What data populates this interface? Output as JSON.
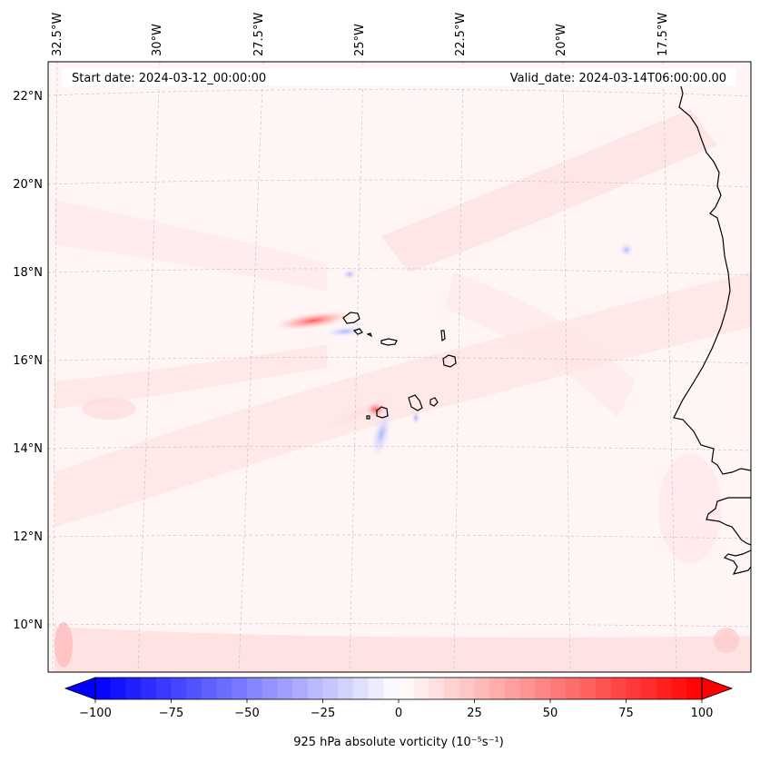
{
  "header": {
    "start_date": "Start date: 2024-03-12_00:00:00",
    "valid_date": "Valid_date: 2024-03-14T06:00:00.00"
  },
  "map": {
    "lon_labels": [
      "32.5°W",
      "30°W",
      "27.5°W",
      "25°W",
      "22.5°W",
      "20°W",
      "17.5°W"
    ],
    "lat_labels": [
      "22°N",
      "20°N",
      "18°N",
      "16°N",
      "14°N",
      "12°N",
      "10°N"
    ],
    "gridlines": "dashed",
    "coastlines": true
  },
  "colorbar": {
    "label": "925 hPa absolute vorticity (10⁻⁵s⁻¹)",
    "tick_labels": [
      "−100",
      "−75",
      "−50",
      "−25",
      "0",
      "25",
      "50",
      "75",
      "100"
    ],
    "range": [
      -100,
      100
    ],
    "colormap": "bwr",
    "extend": "both",
    "low_color": "#0000ff",
    "mid_color": "#ffffff",
    "high_color": "#ff0000"
  }
}
